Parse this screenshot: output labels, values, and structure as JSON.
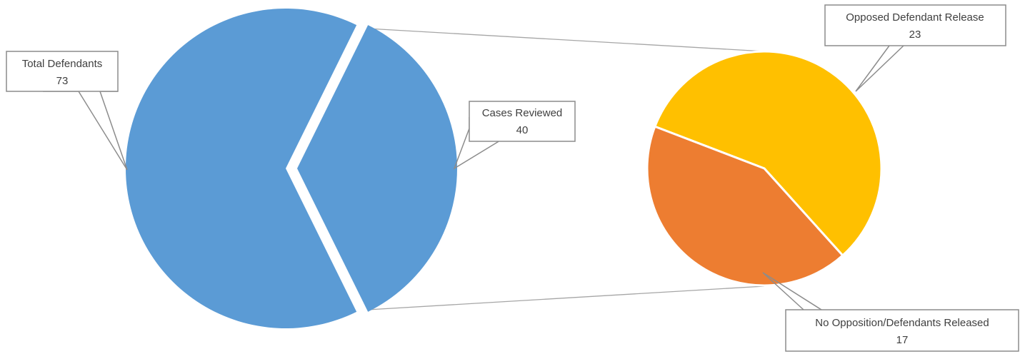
{
  "chart_data": {
    "type": "pie",
    "variant": "pie-of-pie",
    "main_pie": {
      "slices": [
        {
          "label": "Total Defendants",
          "value": 73,
          "color": "#5b9bd5"
        },
        {
          "label": "Cases Reviewed",
          "value": 40,
          "color": "#5b9bd5",
          "exploded": true
        }
      ]
    },
    "secondary_pie": {
      "source_slice": "Cases Reviewed",
      "slices": [
        {
          "label": "Opposed Defendant Release",
          "value": 23,
          "color": "#ffc000"
        },
        {
          "label": "No Opposition/Defendants Released",
          "value": 17,
          "color": "#ed7d31"
        }
      ]
    },
    "title": "",
    "legend": "none",
    "data_labels": "callouts"
  }
}
